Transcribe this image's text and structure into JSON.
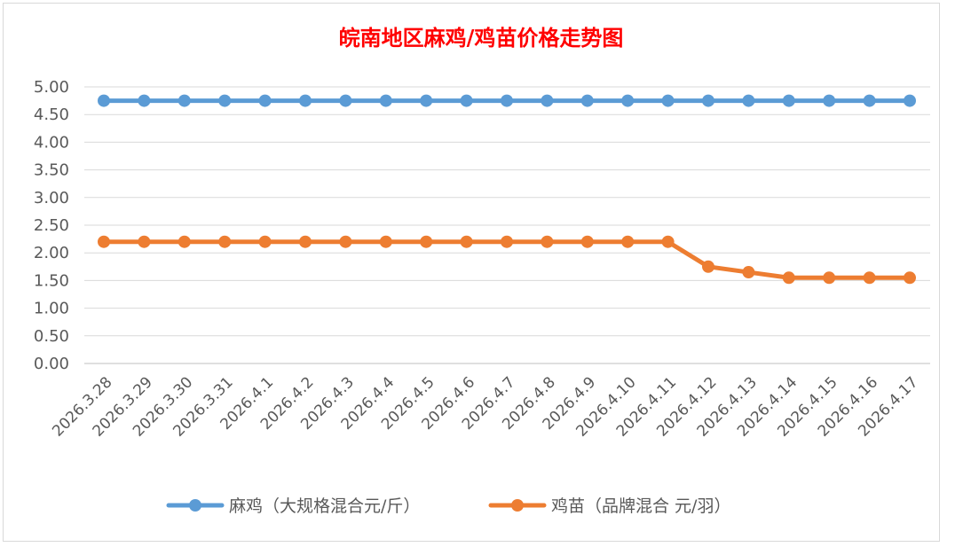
{
  "chart_data": {
    "type": "line",
    "title": "皖南地区麻鸡/鸡苗价格走势图",
    "categories": [
      "2026.3.28",
      "2026.3.29",
      "2026.3.30",
      "2026.3.31",
      "2026.4.1",
      "2026.4.2",
      "2026.4.3",
      "2026.4.4",
      "2026.4.5",
      "2026.4.6",
      "2026.4.7",
      "2026.4.8",
      "2026.4.9",
      "2026.4.10",
      "2026.4.11",
      "2026.4.12",
      "2026.4.13",
      "2026.4.14",
      "2026.4.15",
      "2026.4.16",
      "2026.4.17"
    ],
    "yticks": [
      "0.00",
      "0.50",
      "1.00",
      "1.50",
      "2.00",
      "2.50",
      "3.00",
      "3.50",
      "4.00",
      "4.50",
      "5.00"
    ],
    "ylim": [
      0,
      5
    ],
    "grid": true,
    "legend_position": "bottom",
    "series": [
      {
        "name": "麻鸡（大规格混合元/斤）",
        "color": "#5b9bd5",
        "values": [
          4.75,
          4.75,
          4.75,
          4.75,
          4.75,
          4.75,
          4.75,
          4.75,
          4.75,
          4.75,
          4.75,
          4.75,
          4.75,
          4.75,
          4.75,
          4.75,
          4.75,
          4.75,
          4.75,
          4.75,
          4.75
        ]
      },
      {
        "name": "鸡苗（品牌混合 元/羽）",
        "color": "#ed7d31",
        "values": [
          2.2,
          2.2,
          2.2,
          2.2,
          2.2,
          2.2,
          2.2,
          2.2,
          2.2,
          2.2,
          2.2,
          2.2,
          2.2,
          2.2,
          2.2,
          1.75,
          1.65,
          1.55,
          1.55,
          1.55,
          1.55
        ]
      }
    ]
  }
}
